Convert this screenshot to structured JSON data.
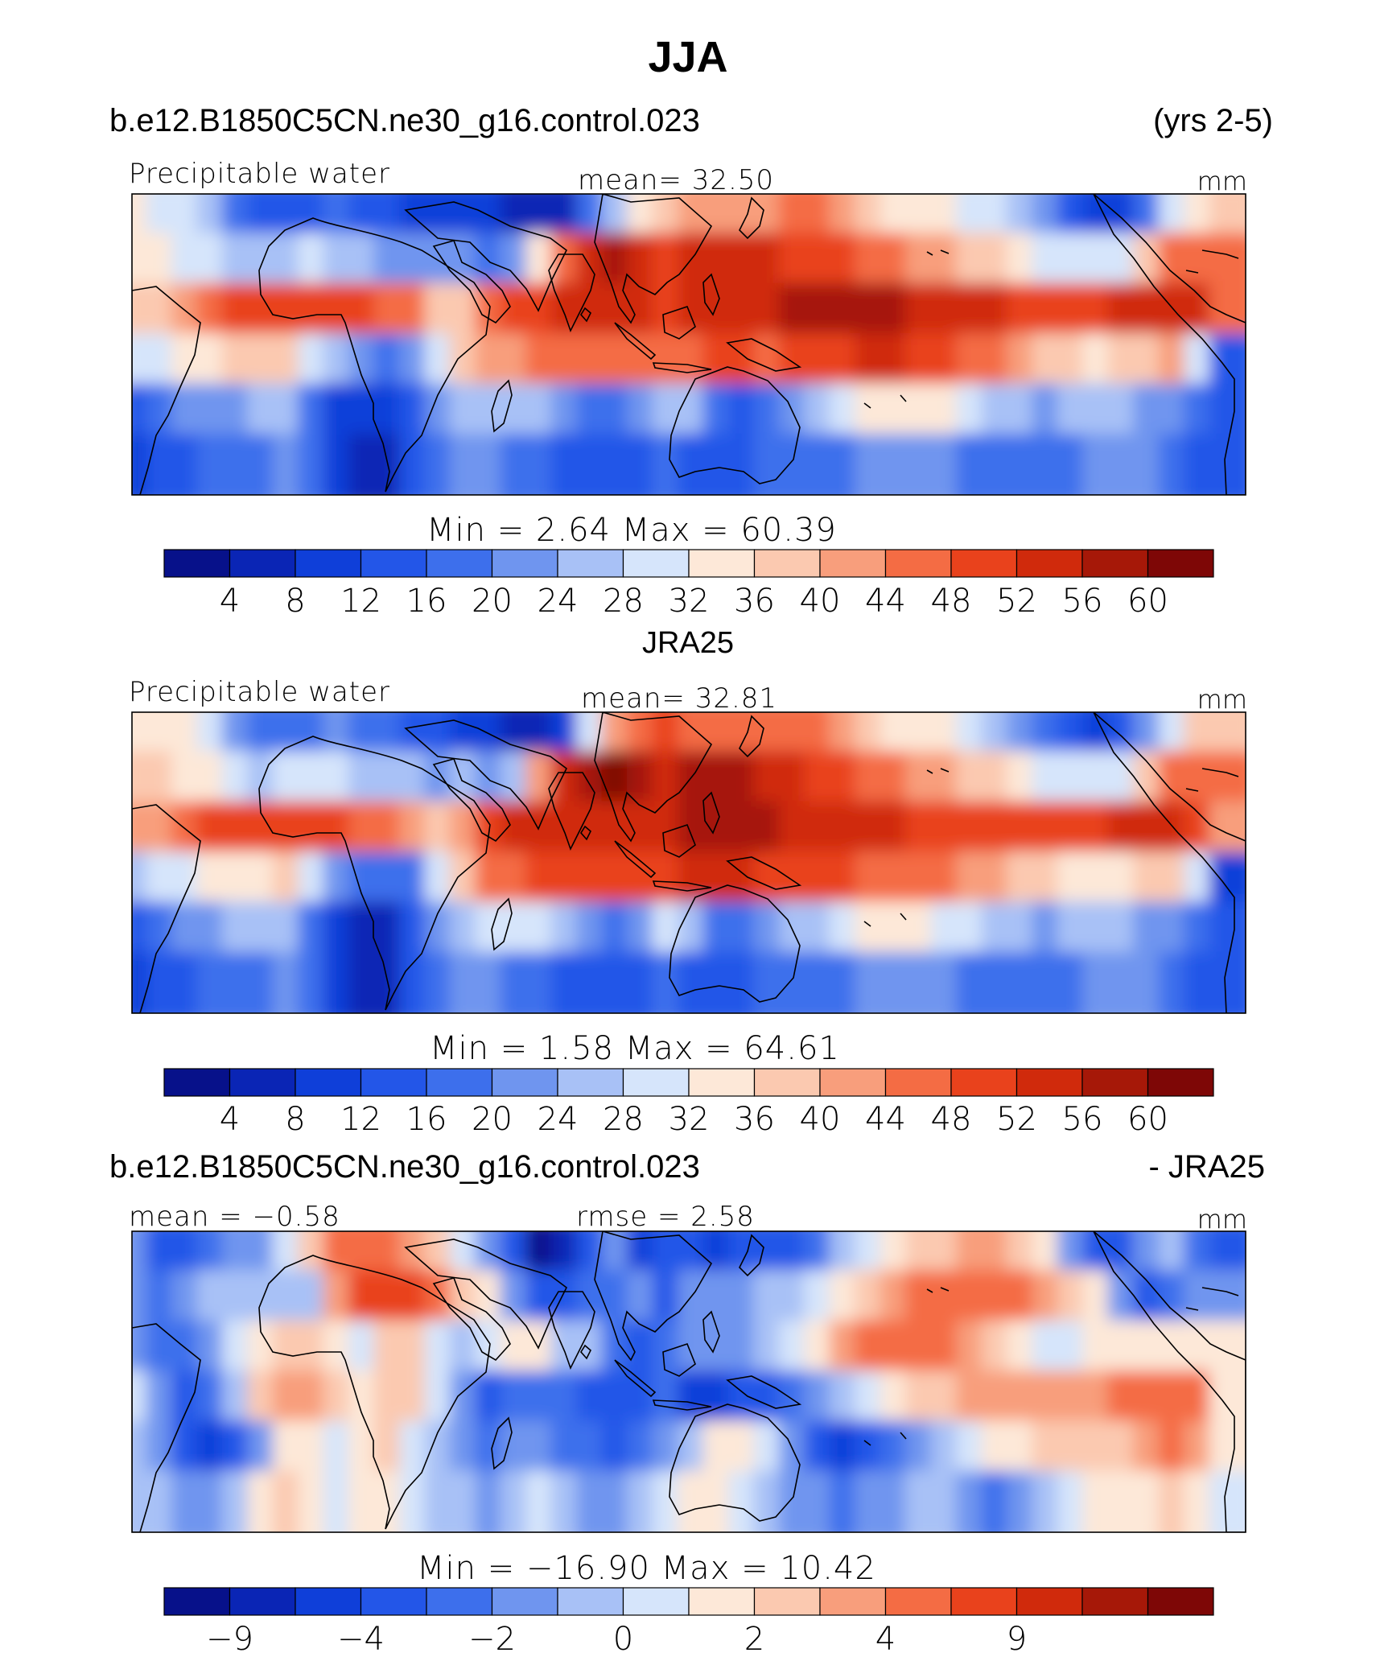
{
  "figure_title": "JJA",
  "panel1": {
    "case": "b.e12.B1850C5CN.ne30_g16.control.023",
    "years": "(yrs 2-5)",
    "variable": "Precipitable water",
    "mean": "mean=   32.50",
    "units": "mm",
    "minmax": "Min  =     2.64  Max  =    60.39"
  },
  "panel2": {
    "title": "JRA25",
    "variable": "Precipitable water",
    "mean": "mean=   32.81",
    "units": "mm",
    "minmax": "Min  =     1.58  Max  =    64.61"
  },
  "panel3": {
    "case": "b.e12.B1850C5CN.ne30_g16.control.023",
    "minus": "- JRA25",
    "mean": "mean  =   −0.58",
    "rmse": "rmse  =     2.58",
    "units": "mm",
    "minmax": "Min  =  −16.90  Max  =    10.42"
  },
  "colors": [
    "#07118a",
    "#0a25b5",
    "#0f3fd9",
    "#2356e8",
    "#3d6fec",
    "#6f95ef",
    "#a8c1f6",
    "#d6e5fb",
    "#fde8d8",
    "#fbc9b0",
    "#f89e7c",
    "#f46c44",
    "#e9421c",
    "#d02a0c",
    "#a61808",
    "#7e0706"
  ],
  "chart_data": [
    {
      "type": "heatmap",
      "title": "Precipitable water",
      "subtitle": "b.e12.B1850C5CN.ne30_g16.control.023 (yrs 2-5)",
      "season": "JJA",
      "units": "mm",
      "mean": 32.5,
      "min": 2.64,
      "max": 60.39,
      "colorbar_ticks": [
        "4",
        "8",
        "12",
        "16",
        "20",
        "24",
        "28",
        "32",
        "36",
        "40",
        "44",
        "48",
        "52",
        "56",
        "60"
      ],
      "grid": {
        "rows": [
          [
            32,
            31,
            28,
            24,
            18,
            15,
            14,
            15,
            16,
            14,
            12,
            10,
            10,
            9,
            8,
            7,
            6,
            7,
            16,
            26,
            34,
            38,
            40,
            41,
            42,
            43,
            44,
            44,
            42,
            38,
            34,
            32,
            32,
            30,
            28,
            25,
            20,
            14,
            10,
            10,
            18,
            28,
            34,
            36
          ],
          [
            35,
            34,
            31,
            30,
            26,
            25,
            26,
            28,
            26,
            25,
            22,
            22,
            20,
            22,
            18,
            20,
            34,
            46,
            52,
            56,
            52,
            50,
            52,
            52,
            53,
            52,
            51,
            50,
            49,
            46,
            44,
            42,
            40,
            38,
            37,
            35,
            30,
            30,
            28,
            30,
            38,
            44,
            46,
            46
          ],
          [
            38,
            38,
            42,
            46,
            48,
            49,
            50,
            50,
            49,
            48,
            46,
            44,
            36,
            38,
            44,
            48,
            50,
            52,
            53,
            53,
            52,
            51,
            52,
            54,
            55,
            55,
            56,
            56,
            57,
            57,
            56,
            55,
            54,
            52,
            52,
            51,
            50,
            50,
            50,
            52,
            54,
            55,
            52,
            46
          ],
          [
            28,
            30,
            33,
            34,
            36,
            36,
            38,
            30,
            24,
            20,
            18,
            20,
            30,
            36,
            40,
            42,
            44,
            44,
            44,
            45,
            44,
            46,
            47,
            50,
            48,
            45,
            48,
            49,
            50,
            52,
            52,
            50,
            48,
            46,
            44,
            42,
            38,
            36,
            35,
            36,
            38,
            40,
            30,
            12
          ],
          [
            14,
            18,
            20,
            22,
            23,
            25,
            27,
            17,
            10,
            8,
            9,
            12,
            20,
            25,
            25,
            26,
            26,
            22,
            18,
            16,
            20,
            26,
            24,
            16,
            15,
            18,
            22,
            26,
            30,
            33,
            35,
            35,
            33,
            30,
            26,
            24,
            22,
            24,
            26,
            26,
            22,
            20,
            16,
            12
          ],
          [
            10,
            12,
            14,
            16,
            18,
            18,
            20,
            16,
            8,
            6,
            6,
            12,
            18,
            20,
            20,
            18,
            16,
            14,
            12,
            12,
            14,
            18,
            14,
            12,
            14,
            16,
            16,
            18,
            18,
            20,
            22,
            22,
            20,
            18,
            16,
            16,
            16,
            18,
            20,
            20,
            20,
            18,
            14,
            12
          ]
        ]
      }
    },
    {
      "type": "heatmap",
      "title": "Precipitable water",
      "subtitle": "JRA25",
      "season": "JJA",
      "units": "mm",
      "mean": 32.81,
      "min": 1.58,
      "max": 64.61,
      "colorbar_ticks": [
        "4",
        "8",
        "12",
        "16",
        "20",
        "24",
        "28",
        "32",
        "36",
        "40",
        "44",
        "48",
        "52",
        "56",
        "60"
      ],
      "grid": {
        "rows": [
          [
            34,
            35,
            32,
            28,
            22,
            18,
            16,
            18,
            20,
            18,
            16,
            14,
            14,
            10,
            8,
            6,
            4,
            10,
            30,
            42,
            46,
            48,
            46,
            46,
            47,
            46,
            45,
            44,
            42,
            38,
            34,
            32,
            32,
            30,
            26,
            22,
            16,
            12,
            10,
            12,
            20,
            30,
            36,
            38
          ],
          [
            38,
            38,
            34,
            32,
            28,
            27,
            28,
            30,
            28,
            26,
            24,
            24,
            22,
            24,
            20,
            24,
            40,
            52,
            58,
            60,
            56,
            54,
            56,
            56,
            56,
            54,
            52,
            50,
            48,
            46,
            44,
            42,
            40,
            38,
            37,
            35,
            30,
            30,
            28,
            30,
            38,
            44,
            46,
            46
          ],
          [
            40,
            42,
            46,
            50,
            50,
            50,
            50,
            50,
            48,
            46,
            44,
            42,
            36,
            40,
            48,
            52,
            52,
            54,
            54,
            55,
            54,
            54,
            56,
            58,
            58,
            56,
            55,
            54,
            53,
            52,
            52,
            51,
            50,
            50,
            50,
            50,
            50,
            50,
            50,
            52,
            54,
            55,
            50,
            42
          ],
          [
            26,
            28,
            30,
            32,
            34,
            34,
            36,
            28,
            22,
            18,
            16,
            18,
            30,
            38,
            44,
            46,
            48,
            48,
            48,
            48,
            48,
            50,
            52,
            54,
            52,
            50,
            50,
            49,
            48,
            47,
            46,
            45,
            44,
            42,
            40,
            38,
            36,
            34,
            33,
            34,
            36,
            38,
            28,
            10
          ],
          [
            14,
            16,
            20,
            22,
            24,
            26,
            26,
            18,
            10,
            7,
            7,
            12,
            20,
            26,
            28,
            28,
            28,
            24,
            20,
            18,
            22,
            28,
            26,
            18,
            16,
            20,
            24,
            26,
            30,
            32,
            33,
            33,
            31,
            29,
            26,
            24,
            22,
            24,
            26,
            26,
            22,
            20,
            16,
            12
          ],
          [
            10,
            12,
            14,
            16,
            18,
            18,
            20,
            16,
            8,
            6,
            6,
            12,
            18,
            20,
            20,
            18,
            16,
            14,
            12,
            12,
            14,
            18,
            14,
            12,
            14,
            16,
            16,
            18,
            18,
            20,
            22,
            22,
            20,
            18,
            16,
            16,
            16,
            18,
            20,
            20,
            20,
            18,
            14,
            12
          ]
        ]
      }
    },
    {
      "type": "heatmap",
      "title": "b.e12.B1850C5CN.ne30_g16.control.023 - JRA25",
      "season": "JJA",
      "units": "mm",
      "mean": -0.58,
      "rmse": 2.58,
      "min": -16.9,
      "max": 10.42,
      "colorbar_ticks": [
        "−9",
        "−4",
        "−2",
        "0",
        "2",
        "4",
        "9"
      ],
      "grid": {
        "rows": [
          [
            -2,
            -4,
            -4,
            -3,
            -2,
            -2,
            0,
            2,
            4,
            4,
            4,
            3,
            2,
            0,
            -2,
            -4,
            -14,
            -8,
            -4,
            -2,
            -6,
            -4,
            -4,
            -6,
            -4,
            -4,
            -4,
            -3,
            -1,
            0,
            1,
            2,
            2,
            3,
            3,
            2,
            1,
            -2,
            -4,
            -4,
            -2,
            -1,
            -3,
            -4
          ],
          [
            -2,
            -3,
            -2,
            -1,
            -1,
            -1,
            -1,
            -1,
            3,
            6,
            7,
            6,
            4,
            2,
            1,
            -2,
            -4,
            -4,
            -3,
            -3,
            -2,
            -4,
            -2,
            -2,
            -2,
            -1,
            -1,
            0,
            1,
            2,
            3,
            4,
            5,
            5,
            5,
            4,
            3,
            2,
            1,
            -2,
            -4,
            -3,
            -2,
            -2
          ],
          [
            -2,
            -3,
            -3,
            -2,
            0,
            1,
            2,
            2,
            1,
            0,
            2,
            2,
            0,
            -1,
            0,
            1,
            1,
            -1,
            -1,
            -3,
            -4,
            -3,
            -2,
            -2,
            -2,
            -1,
            0,
            1,
            3,
            4,
            4,
            4,
            4,
            3,
            2,
            1,
            0,
            0,
            1,
            1,
            1,
            1,
            1,
            1
          ],
          [
            0,
            -2,
            -4,
            -3,
            -1,
            2,
            3,
            3,
            2,
            1,
            2,
            2,
            0,
            -2,
            -4,
            -3,
            -3,
            -3,
            -4,
            -4,
            -4,
            -3,
            -5,
            -5,
            -4,
            -4,
            -3,
            -2,
            -1,
            0,
            1,
            2,
            2,
            3,
            3,
            3,
            3,
            3,
            3,
            4,
            4,
            5,
            4,
            1
          ],
          [
            -1,
            -2,
            -4,
            -5,
            -4,
            -2,
            1,
            1,
            0,
            1,
            2,
            0,
            -1,
            -2,
            -3,
            -2,
            -2,
            -3,
            -3,
            -4,
            -3,
            -2,
            -1,
            1,
            1,
            0,
            -2,
            -4,
            -5,
            -4,
            -3,
            -2,
            -1,
            0,
            1,
            1,
            2,
            2,
            2,
            2,
            3,
            4,
            3,
            1
          ],
          [
            -1,
            -1,
            -2,
            -2,
            -1,
            1,
            2,
            1,
            0,
            1,
            1,
            0,
            -1,
            -1,
            -2,
            -1,
            0,
            -1,
            -2,
            -2,
            -1,
            0,
            1,
            1,
            0,
            -1,
            -2,
            -2,
            -3,
            -2,
            -2,
            -1,
            -1,
            -2,
            -3,
            -2,
            -1,
            0,
            1,
            1,
            1,
            2,
            1,
            0
          ]
        ]
      }
    }
  ]
}
